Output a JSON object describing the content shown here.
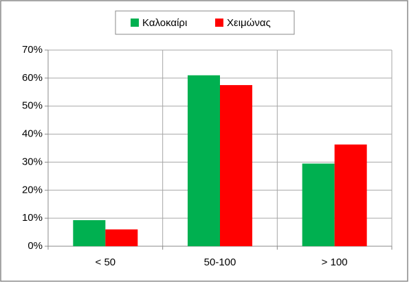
{
  "chart_data": {
    "type": "bar",
    "categories": [
      "< 50",
      "50-100",
      "> 100"
    ],
    "series": [
      {
        "name": "Καλοκαίρι",
        "color": "#00b050",
        "values": [
          9.3,
          61,
          29.5
        ]
      },
      {
        "name": "Χειμώνας",
        "color": "#ff0000",
        "values": [
          6,
          57.5,
          36.3
        ]
      }
    ],
    "ylim": [
      0,
      70
    ],
    "yticks": [
      {
        "value": 0,
        "label": "0%"
      },
      {
        "value": 10,
        "label": "10%"
      },
      {
        "value": 20,
        "label": "20%"
      },
      {
        "value": 30,
        "label": "30%"
      },
      {
        "value": 40,
        "label": "40%"
      },
      {
        "value": 50,
        "label": "50%"
      },
      {
        "value": 60,
        "label": "60%"
      },
      {
        "value": 70,
        "label": "70%"
      }
    ],
    "grid": true,
    "legend": "top"
  }
}
